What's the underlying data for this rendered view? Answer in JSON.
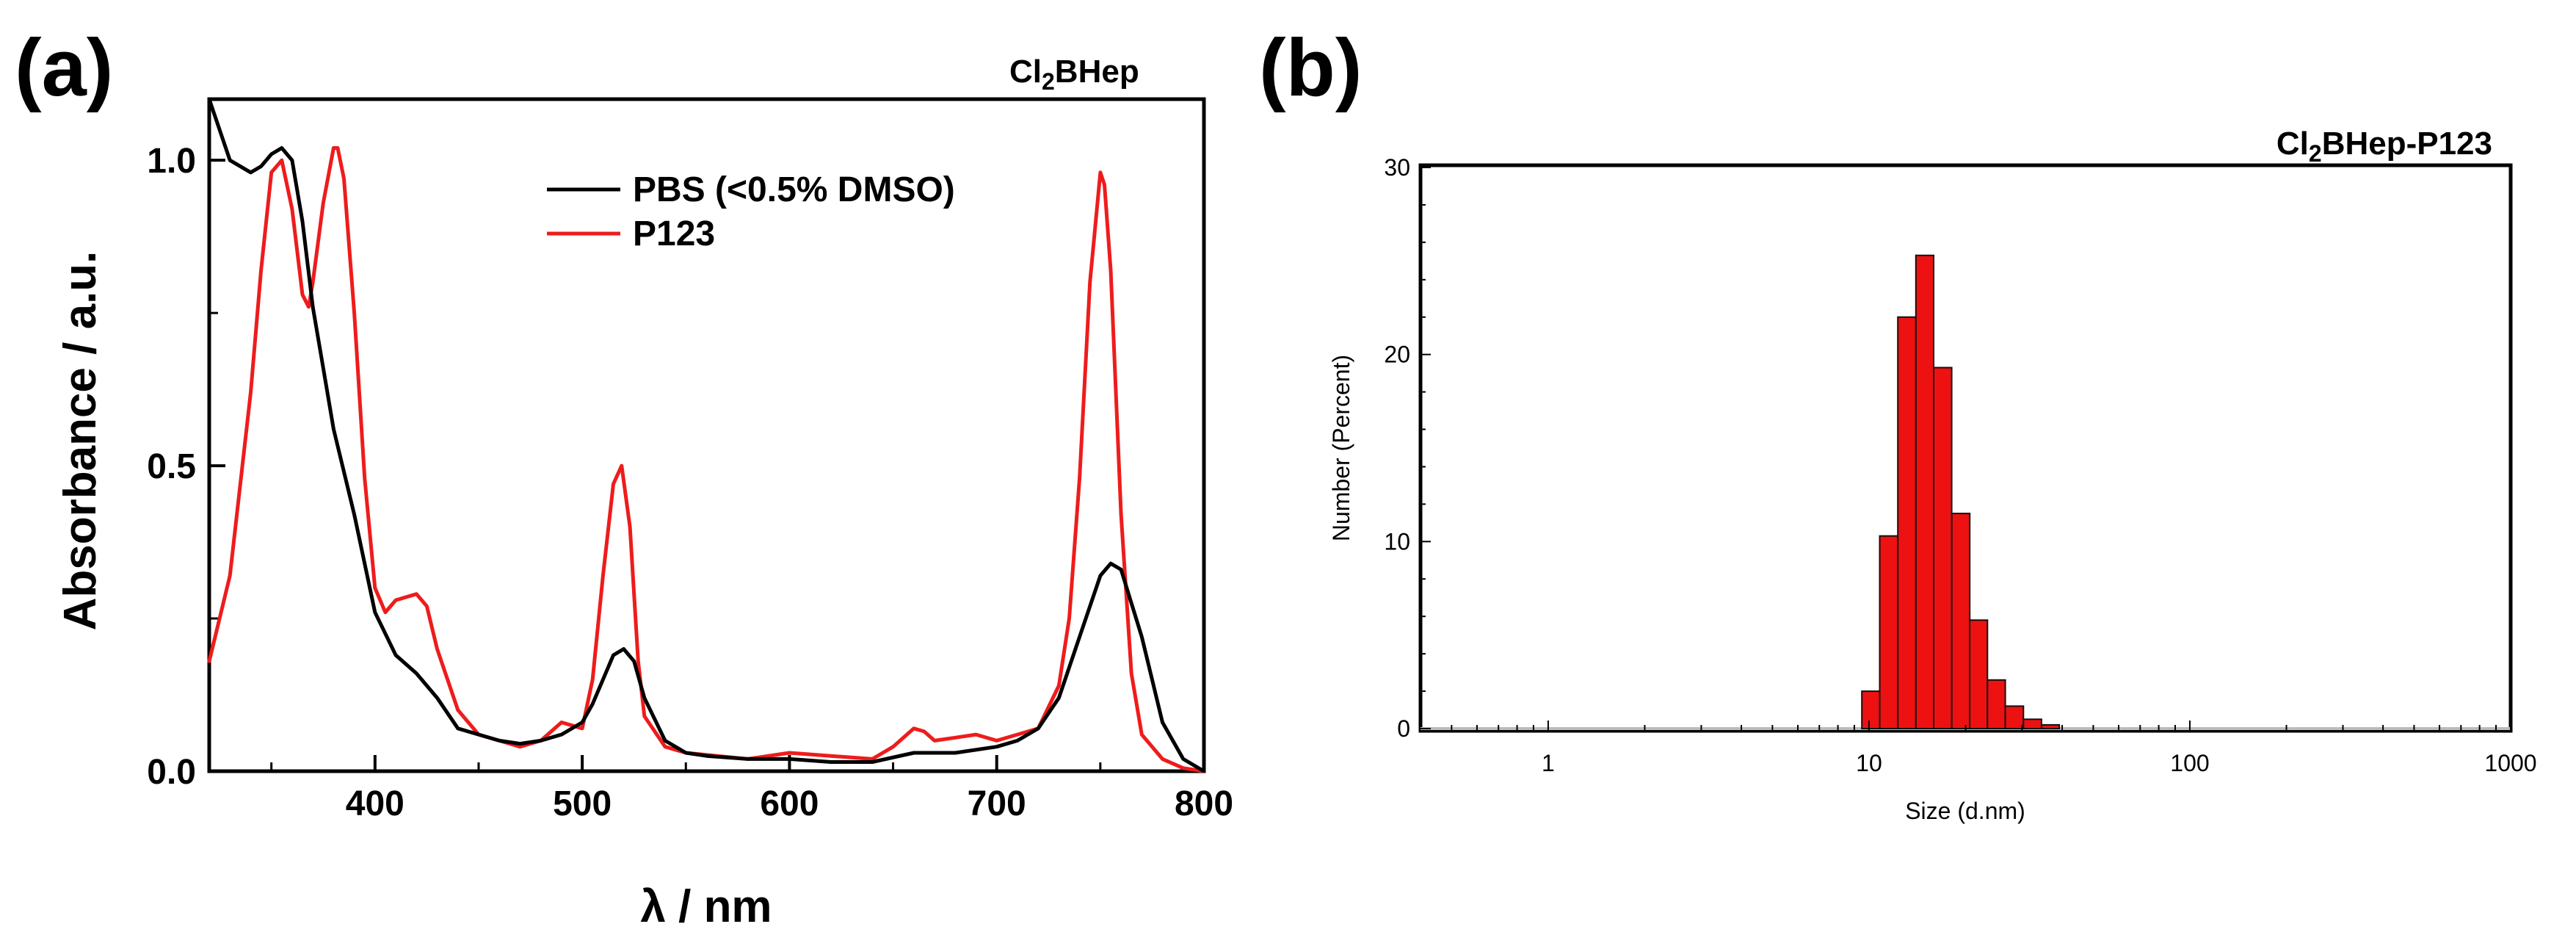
{
  "chart_data": [
    {
      "panel": "(a)",
      "type": "line",
      "title": "Cl2BHep",
      "title_main": "Cl",
      "title_sub": "2",
      "title_rest": "BHep",
      "xlabel": "λ / nm",
      "ylabel": "Absorbance / a.u.",
      "xlim": [
        320,
        800
      ],
      "ylim": [
        0,
        1.1
      ],
      "xticks": [
        400,
        500,
        600,
        700,
        800
      ],
      "xtick_labels": [
        "400",
        "500",
        "600",
        "700",
        "800"
      ],
      "yticks": [
        0.0,
        0.5,
        1.0
      ],
      "ytick_labels": [
        "0.0",
        "0.5",
        "1.0"
      ],
      "series": [
        {
          "name": "PBS (<0.5% DMSO)",
          "color": "#000000",
          "x": [
            320,
            330,
            340,
            345,
            350,
            355,
            360,
            365,
            370,
            375,
            380,
            390,
            400,
            410,
            420,
            430,
            440,
            450,
            460,
            470,
            480,
            490,
            500,
            505,
            510,
            515,
            520,
            525,
            530,
            540,
            550,
            560,
            580,
            600,
            620,
            640,
            660,
            680,
            700,
            710,
            720,
            730,
            740,
            750,
            755,
            760,
            770,
            780,
            790,
            800
          ],
          "y": [
            1.1,
            1.0,
            0.98,
            0.99,
            1.01,
            1.02,
            1.0,
            0.9,
            0.76,
            0.66,
            0.56,
            0.42,
            0.26,
            0.19,
            0.16,
            0.12,
            0.07,
            0.06,
            0.05,
            0.045,
            0.05,
            0.06,
            0.08,
            0.11,
            0.15,
            0.19,
            0.2,
            0.18,
            0.12,
            0.05,
            0.03,
            0.025,
            0.02,
            0.02,
            0.015,
            0.015,
            0.03,
            0.03,
            0.04,
            0.05,
            0.07,
            0.12,
            0.22,
            0.32,
            0.34,
            0.33,
            0.22,
            0.08,
            0.02,
            0.0
          ]
        },
        {
          "name": "P123",
          "color": "#ee1c1c",
          "x": [
            320,
            330,
            340,
            345,
            350,
            355,
            360,
            365,
            368,
            370,
            375,
            380,
            382,
            385,
            390,
            395,
            400,
            405,
            410,
            420,
            425,
            430,
            440,
            450,
            460,
            470,
            480,
            490,
            500,
            505,
            510,
            515,
            519,
            523,
            527,
            530,
            540,
            550,
            580,
            600,
            620,
            640,
            650,
            660,
            665,
            670,
            680,
            690,
            700,
            720,
            730,
            735,
            740,
            745,
            750,
            752,
            755,
            760,
            765,
            770,
            780,
            790,
            800
          ],
          "y": [
            0.18,
            0.32,
            0.62,
            0.82,
            0.98,
            1.0,
            0.92,
            0.78,
            0.76,
            0.8,
            0.93,
            1.02,
            1.02,
            0.97,
            0.75,
            0.48,
            0.3,
            0.26,
            0.28,
            0.29,
            0.27,
            0.2,
            0.1,
            0.06,
            0.05,
            0.04,
            0.05,
            0.08,
            0.07,
            0.15,
            0.32,
            0.47,
            0.5,
            0.4,
            0.18,
            0.09,
            0.04,
            0.03,
            0.02,
            0.03,
            0.025,
            0.02,
            0.04,
            0.07,
            0.065,
            0.05,
            0.055,
            0.06,
            0.05,
            0.07,
            0.14,
            0.25,
            0.48,
            0.8,
            0.98,
            0.96,
            0.82,
            0.42,
            0.16,
            0.06,
            0.02,
            0.005,
            0.0
          ]
        }
      ],
      "legend": {
        "placement": "top-center",
        "entries": [
          "PBS (<0.5% DMSO)",
          "P123"
        ]
      }
    },
    {
      "panel": "(b)",
      "type": "bar",
      "title": "Cl2BHep-P123",
      "title_main": "Cl",
      "title_sub": "2",
      "title_rest": "BHep-P123",
      "xlabel": "Size (d.nm)",
      "ylabel": "Number (Percent)",
      "xscale": "log",
      "xlim": [
        0.4,
        1000
      ],
      "ylim": [
        0,
        30
      ],
      "xticks": [
        1,
        10,
        100,
        1000
      ],
      "xtick_labels": [
        "1",
        "10",
        "100",
        "1000"
      ],
      "yticks": [
        0,
        10,
        20,
        30
      ],
      "ytick_labels": [
        "0",
        "10",
        "20",
        "30"
      ],
      "bar_color": "#ee1111",
      "bins": [
        {
          "left": 9.5,
          "right": 10.8,
          "value": 2.0
        },
        {
          "left": 10.8,
          "right": 12.3,
          "value": 10.3
        },
        {
          "left": 12.3,
          "right": 14.0,
          "value": 22.0
        },
        {
          "left": 14.0,
          "right": 15.9,
          "value": 25.3
        },
        {
          "left": 15.9,
          "right": 18.1,
          "value": 19.3
        },
        {
          "left": 18.1,
          "right": 20.6,
          "value": 11.5
        },
        {
          "left": 20.6,
          "right": 23.4,
          "value": 5.8
        },
        {
          "left": 23.4,
          "right": 26.6,
          "value": 2.6
        },
        {
          "left": 26.6,
          "right": 30.3,
          "value": 1.2
        },
        {
          "left": 30.3,
          "right": 34.5,
          "value": 0.5
        },
        {
          "left": 34.5,
          "right": 39.2,
          "value": 0.2
        }
      ]
    }
  ]
}
